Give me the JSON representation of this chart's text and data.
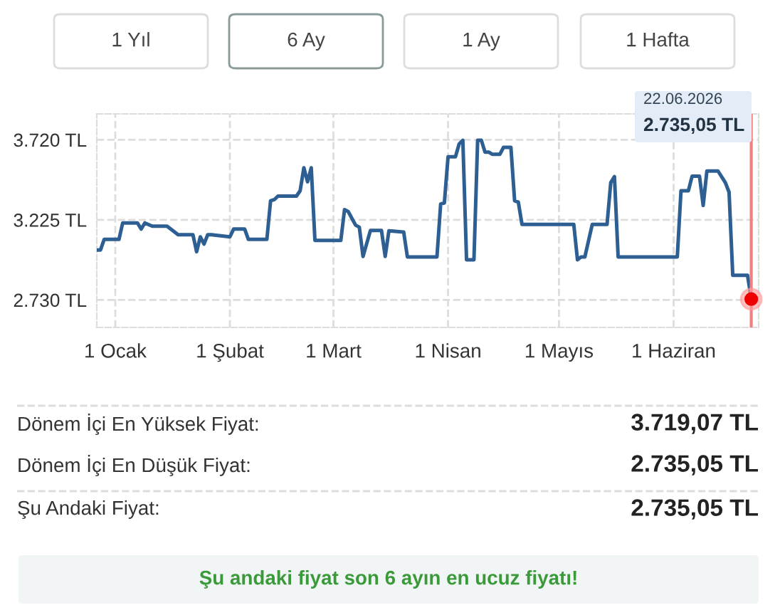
{
  "chart_data": {
    "type": "line",
    "x": [
      "2025-12-27",
      "2025-12-28",
      "2025-12-29",
      "2026-01-02",
      "2026-01-03",
      "2026-01-07",
      "2026-01-08",
      "2026-01-09",
      "2026-01-10",
      "2026-01-11",
      "2026-01-15",
      "2026-01-18",
      "2026-01-22",
      "2026-01-23",
      "2026-01-24",
      "2026-01-25",
      "2026-01-26",
      "2026-01-27",
      "2026-02-01",
      "2026-02-02",
      "2026-02-05",
      "2026-02-06",
      "2026-02-11",
      "2026-02-12",
      "2026-02-13",
      "2026-02-14",
      "2026-02-19",
      "2026-02-20",
      "2026-02-21",
      "2026-02-22",
      "2026-02-23",
      "2026-02-24",
      "2026-03-03",
      "2026-03-04",
      "2026-03-05",
      "2026-03-07",
      "2026-03-08",
      "2026-03-09",
      "2026-03-11",
      "2026-03-14",
      "2026-03-15",
      "2026-03-16",
      "2026-03-20",
      "2026-03-21",
      "2026-03-29",
      "2026-03-30",
      "2026-03-31",
      "2026-04-01",
      "2026-04-03",
      "2026-04-04",
      "2026-04-05",
      "2026-04-06",
      "2026-04-08",
      "2026-04-09",
      "2026-04-10",
      "2026-04-11",
      "2026-04-12",
      "2026-04-13",
      "2026-04-15",
      "2026-04-16",
      "2026-04-18",
      "2026-04-19",
      "2026-04-20",
      "2026-04-21",
      "2026-05-05",
      "2026-05-06",
      "2026-05-07",
      "2026-05-08",
      "2026-05-10",
      "2026-05-14",
      "2026-05-15",
      "2026-05-16",
      "2026-05-17",
      "2026-06-02",
      "2026-06-03",
      "2026-06-05",
      "2026-06-06",
      "2026-06-08",
      "2026-06-09",
      "2026-06-10",
      "2026-06-13",
      "2026-06-15",
      "2026-06-16",
      "2026-06-17",
      "2026-06-21",
      "2026-06-22"
    ],
    "series": [
      {
        "color": "#2e5f93",
        "values": [
          3039,
          3039,
          3104,
          3104,
          3206,
          3206,
          3168,
          3206,
          3196,
          3186,
          3186,
          3133,
          3133,
          3028,
          3120,
          3075,
          3133,
          3133,
          3120,
          3168,
          3168,
          3104,
          3104,
          3343,
          3350,
          3372,
          3372,
          3405,
          3547,
          3460,
          3547,
          3098,
          3098,
          3288,
          3276,
          3192,
          3180,
          2999,
          3159,
          3159,
          2999,
          3157,
          3150,
          2996,
          2996,
          3323,
          3330,
          3615,
          3615,
          3694,
          3717,
          2978,
          2978,
          3717,
          3717,
          3644,
          3644,
          3630,
          3630,
          3673,
          3673,
          3343,
          3335,
          3197,
          3197,
          2978,
          2996,
          2996,
          3197,
          3197,
          3455,
          3492,
          2996,
          2996,
          3405,
          3405,
          3495,
          3495,
          3314,
          3527,
          3527,
          3455,
          3396,
          2882,
          2882,
          2735.05
        ]
      }
    ],
    "xlim": [
      "2025-12-27",
      "2026-06-24"
    ],
    "ylim": [
      2560,
      3880
    ],
    "yticks": [
      {
        "value": 2730,
        "label": "2.730 TL"
      },
      {
        "value": 3225,
        "label": "3.225 TL"
      },
      {
        "value": 3720,
        "label": "3.720 TL"
      }
    ],
    "xticks": [
      {
        "value": "2026-01-01",
        "label": "1 Ocak"
      },
      {
        "value": "2026-02-01",
        "label": "1 Şubat"
      },
      {
        "value": "2026-03-01",
        "label": "1 Mart"
      },
      {
        "value": "2026-04-01",
        "label": "1 Nisan"
      },
      {
        "value": "2026-05-01",
        "label": "1 Mayıs"
      },
      {
        "value": "2026-06-01",
        "label": "1 Haziran"
      }
    ],
    "grid": true,
    "line_style": "solid",
    "marker": "none",
    "ref_lines": [
      {
        "axis": "x",
        "value": "2026-06-22",
        "label": null,
        "color": "#f08080"
      }
    ],
    "annotations": [
      "1 Yıl",
      "6 Ay",
      "1 Ay",
      "1 Hafta",
      "22.06.2026\n2.735,05 TL",
      "Dönem İçi En Yüksek Fiyat:",
      "3.719,07 TL",
      "Dönem İçi En Düşük Fiyat:",
      "2.735,05 TL",
      "Şu Andaki Fiyat:",
      "2.735,05 TL",
      "Şu andaki fiyat son 6 ayın en ucuz fiyatı!"
    ]
  }
}
